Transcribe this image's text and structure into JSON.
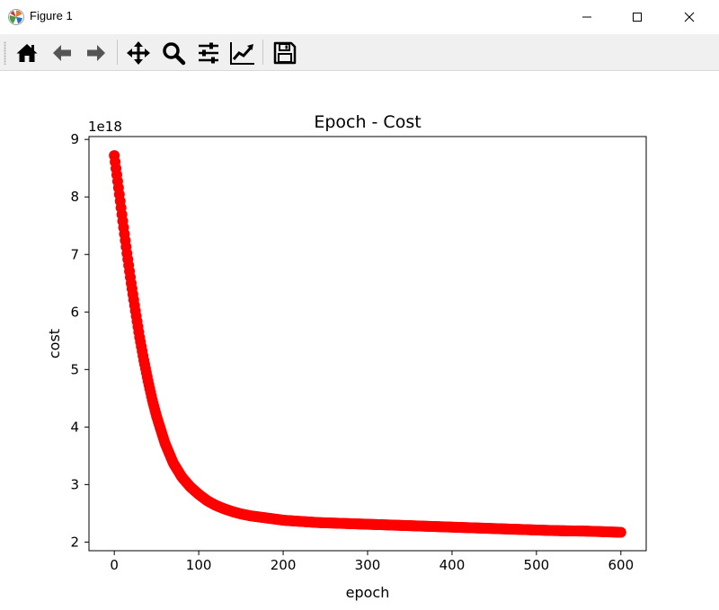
{
  "window": {
    "title": "Figure 1",
    "icon": "matplotlib-logo-icon"
  },
  "toolbar": {
    "items": [
      {
        "name": "home-button",
        "icon": "home-icon"
      },
      {
        "name": "back-button",
        "icon": "arrow-left-icon"
      },
      {
        "name": "forward-button",
        "icon": "arrow-right-icon"
      },
      {
        "name": "pan-button",
        "icon": "move-icon"
      },
      {
        "name": "zoom-button",
        "icon": "magnifier-icon"
      },
      {
        "name": "subplots-button",
        "icon": "sliders-icon"
      },
      {
        "name": "customize-button",
        "icon": "line-chart-icon"
      },
      {
        "name": "save-button",
        "icon": "floppy-disk-icon"
      }
    ]
  },
  "chart_data": {
    "type": "scatter",
    "title": "Epoch - Cost",
    "xlabel": "epoch",
    "ylabel": "cost",
    "y_offset_label": "1e18",
    "xlim": [
      -30,
      630
    ],
    "ylim": [
      1.85,
      9.05
    ],
    "xticks": [
      0,
      100,
      200,
      300,
      400,
      500,
      600
    ],
    "yticks": [
      2,
      3,
      4,
      5,
      6,
      7,
      8,
      9
    ],
    "grid": false,
    "marker_color": "#ff0000",
    "series": [
      {
        "x": [
          0,
          5,
          10,
          15,
          20,
          25,
          30,
          35,
          40,
          45,
          50,
          60,
          70,
          80,
          90,
          100,
          110,
          120,
          130,
          140,
          150,
          160,
          170,
          180,
          190,
          200,
          220,
          240,
          260,
          280,
          300,
          320,
          340,
          360,
          380,
          400,
          420,
          440,
          460,
          480,
          500,
          520,
          540,
          560,
          580,
          600
        ],
        "y": [
          8.72,
          8.16,
          7.58,
          7.02,
          6.5,
          6.02,
          5.56,
          5.16,
          4.8,
          4.47,
          4.19,
          3.72,
          3.37,
          3.13,
          2.96,
          2.83,
          2.72,
          2.64,
          2.58,
          2.53,
          2.49,
          2.46,
          2.44,
          2.42,
          2.4,
          2.38,
          2.36,
          2.34,
          2.33,
          2.32,
          2.31,
          2.3,
          2.29,
          2.28,
          2.27,
          2.26,
          2.25,
          2.24,
          2.23,
          2.22,
          2.21,
          2.2,
          2.195,
          2.19,
          2.18,
          2.17
        ]
      }
    ]
  }
}
